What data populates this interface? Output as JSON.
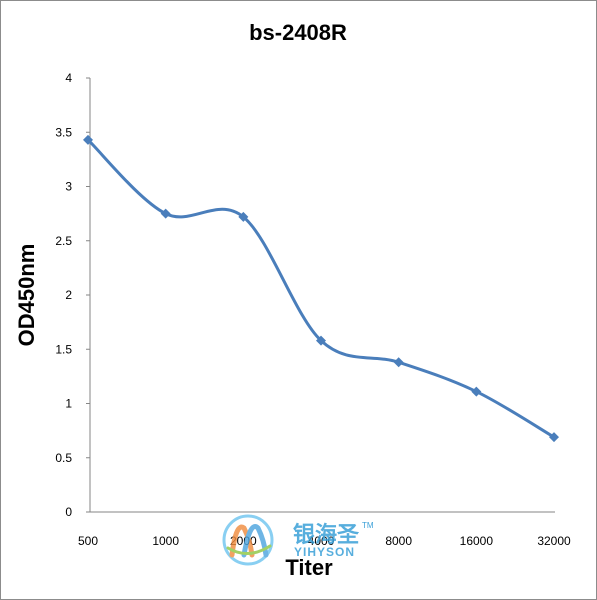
{
  "chart_data": {
    "type": "line",
    "title": "bs-2408R",
    "xlabel": "Titer",
    "ylabel": "OD450nm",
    "categories": [
      "500",
      "1000",
      "2000",
      "4000",
      "8000",
      "16000",
      "32000"
    ],
    "series": [
      {
        "values": [
          3.43,
          2.75,
          2.72,
          1.58,
          1.38,
          1.11,
          0.69
        ],
        "color": "#4a7ebb"
      }
    ],
    "yticks": [
      "0",
      "0.5",
      "1",
      "1.5",
      "2",
      "2.5",
      "3",
      "3.5",
      "4"
    ],
    "ylim": [
      0,
      4
    ],
    "smooth": true,
    "marker": "diamond",
    "grid": false,
    "legend": "none"
  },
  "watermark": {
    "chinese": "银海圣",
    "english": "YIHYSON",
    "tm": "TM"
  }
}
